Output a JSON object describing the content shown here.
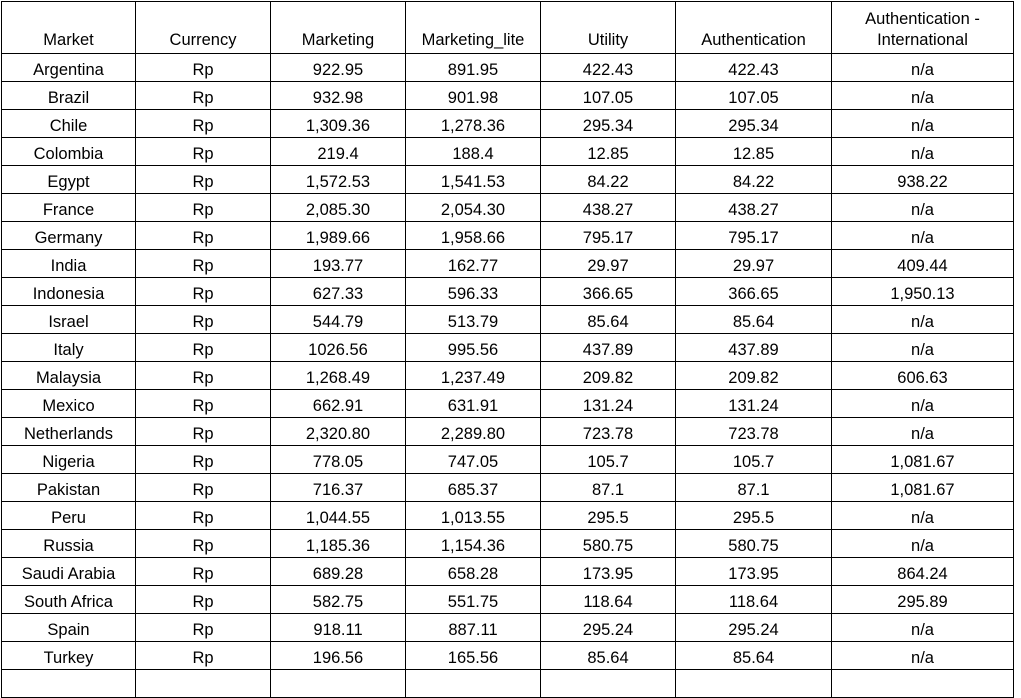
{
  "table": {
    "headers": [
      "Market",
      "Currency",
      "Marketing",
      "Marketing_lite",
      "Utility",
      "Authentication",
      "Authentication - International"
    ],
    "rows": [
      [
        "Argentina",
        "Rp",
        "922.95",
        "891.95",
        "422.43",
        "422.43",
        "n/a"
      ],
      [
        "Brazil",
        "Rp",
        "932.98",
        "901.98",
        "107.05",
        "107.05",
        "n/a"
      ],
      [
        "Chile",
        "Rp",
        "1,309.36",
        "1,278.36",
        "295.34",
        "295.34",
        "n/a"
      ],
      [
        "Colombia",
        "Rp",
        "219.4",
        "188.4",
        "12.85",
        "12.85",
        "n/a"
      ],
      [
        "Egypt",
        "Rp",
        "1,572.53",
        "1,541.53",
        "84.22",
        "84.22",
        "938.22"
      ],
      [
        "France",
        "Rp",
        "2,085.30",
        "2,054.30",
        "438.27",
        "438.27",
        "n/a"
      ],
      [
        "Germany",
        "Rp",
        "1,989.66",
        "1,958.66",
        "795.17",
        "795.17",
        "n/a"
      ],
      [
        "India",
        "Rp",
        "193.77",
        "162.77",
        "29.97",
        "29.97",
        "409.44"
      ],
      [
        "Indonesia",
        "Rp",
        "627.33",
        "596.33",
        "366.65",
        "366.65",
        "1,950.13"
      ],
      [
        "Israel",
        "Rp",
        "544.79",
        "513.79",
        "85.64",
        "85.64",
        "n/a"
      ],
      [
        "Italy",
        "Rp",
        "1026.56",
        "995.56",
        "437.89",
        "437.89",
        "n/a"
      ],
      [
        "Malaysia",
        "Rp",
        "1,268.49",
        "1,237.49",
        "209.82",
        "209.82",
        "606.63"
      ],
      [
        "Mexico",
        "Rp",
        "662.91",
        "631.91",
        "131.24",
        "131.24",
        "n/a"
      ],
      [
        "Netherlands",
        "Rp",
        "2,320.80",
        "2,289.80",
        "723.78",
        "723.78",
        "n/a"
      ],
      [
        "Nigeria",
        "Rp",
        "778.05",
        "747.05",
        "105.7",
        "105.7",
        "1,081.67"
      ],
      [
        "Pakistan",
        "Rp",
        "716.37",
        "685.37",
        "87.1",
        "87.1",
        "1,081.67"
      ],
      [
        "Peru",
        "Rp",
        "1,044.55",
        "1,013.55",
        "295.5",
        "295.5",
        "n/a"
      ],
      [
        "Russia",
        "Rp",
        "1,185.36",
        "1,154.36",
        "580.75",
        "580.75",
        "n/a"
      ],
      [
        "Saudi Arabia",
        "Rp",
        "689.28",
        "658.28",
        "173.95",
        "173.95",
        "864.24"
      ],
      [
        "South Africa",
        "Rp",
        "582.75",
        "551.75",
        "118.64",
        "118.64",
        "295.89"
      ],
      [
        "Spain",
        "Rp",
        "918.11",
        "887.11",
        "295.24",
        "295.24",
        "n/a"
      ],
      [
        "Turkey",
        "Rp",
        "196.56",
        "165.56",
        "85.64",
        "85.64",
        "n/a"
      ],
      [
        "",
        "",
        "",
        "",
        "",
        "",
        ""
      ]
    ]
  }
}
